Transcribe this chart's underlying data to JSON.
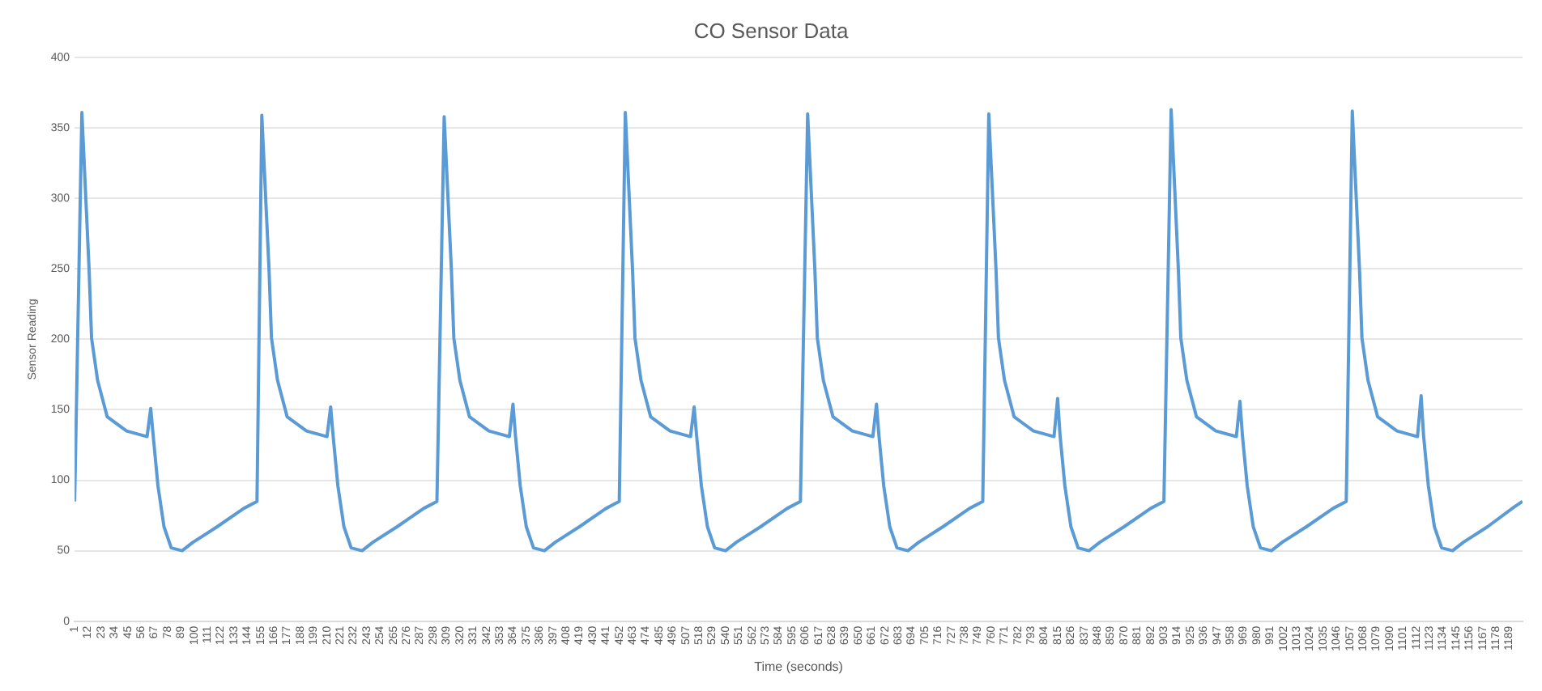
{
  "chart_data": {
    "type": "line",
    "title": "CO Sensor Data",
    "xlabel": "Time (seconds)",
    "ylabel": "Sensor Reading",
    "color": "#5b9bd5",
    "marker": "none",
    "grid": "y",
    "xlim": [
      1,
      1200
    ],
    "ylim": [
      0,
      400
    ],
    "yticks": [
      0,
      50,
      100,
      150,
      200,
      250,
      300,
      350,
      400
    ],
    "xticks": [
      1,
      12,
      23,
      34,
      45,
      56,
      67,
      78,
      89,
      100,
      111,
      122,
      133,
      144,
      155,
      166,
      177,
      188,
      199,
      210,
      221,
      232,
      243,
      254,
      265,
      276,
      287,
      298,
      309,
      320,
      331,
      342,
      353,
      364,
      375,
      386,
      397,
      408,
      419,
      430,
      441,
      452,
      463,
      474,
      485,
      496,
      507,
      518,
      529,
      540,
      551,
      562,
      573,
      584,
      595,
      606,
      617,
      628,
      639,
      650,
      661,
      672,
      683,
      694,
      705,
      716,
      727,
      738,
      749,
      760,
      771,
      782,
      793,
      804,
      815,
      826,
      837,
      848,
      859,
      870,
      881,
      892,
      903,
      914,
      925,
      936,
      947,
      958,
      969,
      980,
      991,
      1002,
      1013,
      1024,
      1035,
      1046,
      1057,
      1068,
      1079,
      1090,
      1101,
      1112,
      1123,
      1134,
      1145,
      1156,
      1167,
      1178,
      1189
    ],
    "x": [
      1,
      7,
      13,
      15,
      20,
      28,
      44,
      61,
      64,
      66,
      70,
      75,
      81,
      90,
      99,
      119,
      141,
      152,
      156,
      162,
      164,
      169,
      177,
      193,
      210,
      213,
      215,
      219,
      224,
      230,
      239,
      248,
      268,
      290,
      301,
      307,
      313,
      315,
      320,
      328,
      344,
      361,
      364,
      366,
      370,
      375,
      381,
      390,
      399,
      419,
      441,
      452,
      457,
      463,
      465,
      470,
      478,
      494,
      511,
      514,
      516,
      520,
      525,
      531,
      540,
      549,
      569,
      591,
      602,
      608,
      614,
      616,
      621,
      629,
      645,
      662,
      665,
      667,
      671,
      676,
      682,
      691,
      700,
      720,
      742,
      753,
      758,
      764,
      766,
      771,
      779,
      795,
      812,
      815,
      817,
      821,
      826,
      832,
      841,
      850,
      870,
      892,
      903,
      909,
      915,
      917,
      922,
      930,
      946,
      963,
      966,
      968,
      972,
      977,
      983,
      992,
      1001,
      1021,
      1043,
      1054,
      1059,
      1065,
      1067,
      1072,
      1080,
      1096,
      1113,
      1116,
      1118,
      1122,
      1127,
      1133,
      1142,
      1151,
      1171,
      1193,
      1200
    ],
    "values": [
      85,
      361,
      249,
      201,
      171,
      145,
      135,
      131,
      151,
      132,
      96,
      67,
      52,
      50,
      56,
      67,
      80,
      85,
      359,
      249,
      201,
      171,
      145,
      135,
      131,
      152,
      132,
      96,
      67,
      52,
      50,
      56,
      67,
      80,
      85,
      358,
      249,
      201,
      171,
      145,
      135,
      131,
      154,
      132,
      96,
      67,
      52,
      50,
      56,
      67,
      80,
      85,
      361,
      249,
      201,
      171,
      145,
      135,
      131,
      152,
      132,
      96,
      67,
      52,
      50,
      56,
      67,
      80,
      85,
      360,
      249,
      201,
      171,
      145,
      135,
      131,
      154,
      132,
      96,
      67,
      52,
      50,
      56,
      67,
      80,
      85,
      360,
      249,
      201,
      171,
      145,
      135,
      131,
      158,
      132,
      96,
      67,
      52,
      50,
      56,
      67,
      80,
      85,
      363,
      249,
      201,
      171,
      145,
      135,
      131,
      156,
      132,
      96,
      67,
      52,
      50,
      56,
      67,
      80,
      85,
      362,
      249,
      201,
      171,
      145,
      135,
      131,
      160,
      132,
      96,
      67,
      52,
      50,
      56,
      67,
      81,
      85
    ]
  }
}
